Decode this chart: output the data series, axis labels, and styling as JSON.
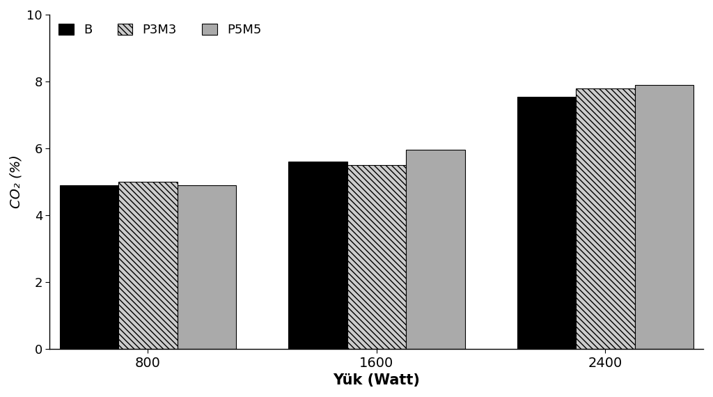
{
  "categories": [
    "800",
    "1600",
    "2400"
  ],
  "series": {
    "B": [
      4.9,
      5.6,
      7.55
    ],
    "P3M3": [
      5.0,
      5.5,
      7.8
    ],
    "P5M5": [
      4.9,
      5.95,
      7.9
    ]
  },
  "colors": {
    "B": "#000000",
    "P3M3": "#cccccc",
    "P5M5": "#aaaaaa"
  },
  "hatches": {
    "B": "",
    "P3M3": "\\\\\\\\",
    "P5M5": "====="
  },
  "xlabel": "Yük (Watt)",
  "ylabel": "CO₂ (%)",
  "ylim": [
    0,
    10
  ],
  "yticks": [
    0,
    2,
    4,
    6,
    8,
    10
  ],
  "bar_width": 0.18,
  "group_positions": [
    0.3,
    1.0,
    1.7
  ],
  "legend_labels": [
    "B",
    "P3M3",
    "P5M5"
  ],
  "xtick_labels": [
    "800",
    "1600",
    "2400"
  ],
  "background_color": "#ffffff",
  "edge_color": "#000000"
}
